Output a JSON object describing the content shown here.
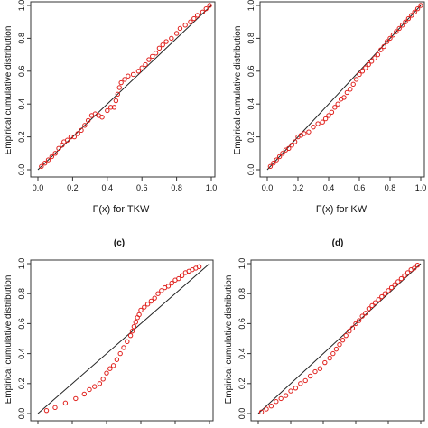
{
  "chart_data": [
    {
      "type": "scatter",
      "panel_label": "",
      "xlabel": "F(x) for TKW",
      "ylabel": "Empirical cumulative distribution",
      "xlim": [
        0,
        1
      ],
      "ylim": [
        0,
        1
      ],
      "x_ticks": [
        "0.0",
        "0.2",
        "0.4",
        "0.6",
        "0.8",
        "1.0"
      ],
      "y_ticks": [
        "0.0",
        "0.2",
        "0.4",
        "0.6",
        "0.8",
        "1.0"
      ],
      "reference_line": {
        "from": [
          0,
          0
        ],
        "to": [
          1,
          1
        ]
      },
      "points_x": [
        0.02,
        0.04,
        0.06,
        0.08,
        0.1,
        0.12,
        0.14,
        0.15,
        0.17,
        0.19,
        0.21,
        0.23,
        0.25,
        0.27,
        0.29,
        0.31,
        0.33,
        0.35,
        0.37,
        0.4,
        0.42,
        0.44,
        0.45,
        0.46,
        0.47,
        0.48,
        0.5,
        0.52,
        0.55,
        0.58,
        0.6,
        0.62,
        0.64,
        0.66,
        0.68,
        0.7,
        0.72,
        0.74,
        0.77,
        0.8,
        0.82,
        0.85,
        0.88,
        0.9,
        0.92,
        0.95,
        0.97,
        0.99
      ],
      "points_y": [
        0.02,
        0.04,
        0.06,
        0.08,
        0.1,
        0.13,
        0.15,
        0.17,
        0.18,
        0.2,
        0.2,
        0.22,
        0.24,
        0.27,
        0.3,
        0.33,
        0.34,
        0.33,
        0.32,
        0.36,
        0.38,
        0.38,
        0.42,
        0.46,
        0.5,
        0.53,
        0.55,
        0.57,
        0.58,
        0.6,
        0.62,
        0.64,
        0.67,
        0.69,
        0.71,
        0.74,
        0.76,
        0.78,
        0.8,
        0.83,
        0.86,
        0.88,
        0.9,
        0.92,
        0.94,
        0.96,
        0.98,
        1.0
      ]
    },
    {
      "type": "scatter",
      "panel_label": "",
      "xlabel": "F(x) for KW",
      "ylabel": "Empirical cumulative distribution",
      "xlim": [
        0,
        1
      ],
      "ylim": [
        0,
        1
      ],
      "x_ticks": [
        "0.0",
        "0.2",
        "0.4",
        "0.6",
        "0.8",
        "1.0"
      ],
      "y_ticks": [
        "0.0",
        "0.2",
        "0.4",
        "0.6",
        "0.8",
        "1.0"
      ],
      "reference_line": {
        "from": [
          0,
          0
        ],
        "to": [
          1,
          1
        ]
      },
      "points_x": [
        0.02,
        0.04,
        0.06,
        0.08,
        0.1,
        0.12,
        0.14,
        0.16,
        0.18,
        0.2,
        0.22,
        0.24,
        0.27,
        0.3,
        0.33,
        0.36,
        0.38,
        0.4,
        0.42,
        0.44,
        0.46,
        0.48,
        0.5,
        0.52,
        0.54,
        0.56,
        0.58,
        0.6,
        0.62,
        0.64,
        0.66,
        0.68,
        0.7,
        0.72,
        0.74,
        0.76,
        0.78,
        0.8,
        0.82,
        0.84,
        0.86,
        0.88,
        0.9,
        0.92,
        0.94,
        0.96,
        0.98,
        1.0
      ],
      "points_y": [
        0.02,
        0.04,
        0.06,
        0.08,
        0.1,
        0.12,
        0.13,
        0.15,
        0.17,
        0.2,
        0.21,
        0.22,
        0.23,
        0.26,
        0.28,
        0.29,
        0.31,
        0.33,
        0.35,
        0.38,
        0.4,
        0.43,
        0.44,
        0.47,
        0.49,
        0.52,
        0.55,
        0.58,
        0.6,
        0.62,
        0.64,
        0.66,
        0.68,
        0.7,
        0.73,
        0.75,
        0.78,
        0.8,
        0.82,
        0.84,
        0.86,
        0.88,
        0.9,
        0.92,
        0.94,
        0.96,
        0.98,
        1.0
      ]
    },
    {
      "type": "scatter",
      "panel_label": "(c)",
      "xlabel": "",
      "ylabel": "Empirical cumulative distribution",
      "xlim": [
        0,
        1
      ],
      "ylim": [
        0,
        1
      ],
      "x_ticks": [],
      "y_ticks": [
        "0.0",
        "0.2",
        "0.4",
        "0.6",
        "0.8",
        "1.0"
      ],
      "reference_line": {
        "from": [
          0,
          0
        ],
        "to": [
          1,
          1
        ]
      },
      "points_x": [
        0.05,
        0.1,
        0.16,
        0.22,
        0.27,
        0.3,
        0.33,
        0.36,
        0.38,
        0.4,
        0.42,
        0.44,
        0.46,
        0.48,
        0.5,
        0.52,
        0.54,
        0.55,
        0.56,
        0.57,
        0.58,
        0.59,
        0.6,
        0.62,
        0.64,
        0.66,
        0.68,
        0.7,
        0.72,
        0.74,
        0.76,
        0.78,
        0.8,
        0.82,
        0.84,
        0.86,
        0.88,
        0.9,
        0.92,
        0.94
      ],
      "points_y": [
        0.02,
        0.04,
        0.07,
        0.1,
        0.13,
        0.16,
        0.18,
        0.2,
        0.23,
        0.27,
        0.3,
        0.32,
        0.36,
        0.4,
        0.44,
        0.48,
        0.52,
        0.55,
        0.58,
        0.61,
        0.64,
        0.66,
        0.69,
        0.71,
        0.73,
        0.75,
        0.77,
        0.8,
        0.82,
        0.84,
        0.85,
        0.87,
        0.89,
        0.9,
        0.92,
        0.94,
        0.95,
        0.96,
        0.97,
        0.98
      ]
    },
    {
      "type": "scatter",
      "panel_label": "(d)",
      "xlabel": "",
      "ylabel": "Empirical cumulative distribution",
      "xlim": [
        0,
        1
      ],
      "ylim": [
        0,
        1
      ],
      "x_ticks": [],
      "y_ticks": [
        "0.0",
        "0.2",
        "0.4",
        "0.6",
        "0.8",
        "1.0"
      ],
      "reference_line": {
        "from": [
          0,
          0
        ],
        "to": [
          1,
          1
        ]
      },
      "points_x": [
        0.02,
        0.05,
        0.08,
        0.11,
        0.14,
        0.17,
        0.2,
        0.23,
        0.26,
        0.29,
        0.32,
        0.35,
        0.38,
        0.41,
        0.44,
        0.46,
        0.48,
        0.5,
        0.52,
        0.54,
        0.56,
        0.58,
        0.6,
        0.62,
        0.64,
        0.66,
        0.68,
        0.7,
        0.72,
        0.74,
        0.76,
        0.78,
        0.8,
        0.82,
        0.84,
        0.86,
        0.88,
        0.9,
        0.92,
        0.94,
        0.96,
        0.98
      ],
      "points_y": [
        0.01,
        0.03,
        0.05,
        0.08,
        0.1,
        0.12,
        0.15,
        0.17,
        0.2,
        0.22,
        0.25,
        0.28,
        0.3,
        0.34,
        0.37,
        0.4,
        0.43,
        0.46,
        0.49,
        0.52,
        0.55,
        0.57,
        0.6,
        0.62,
        0.65,
        0.67,
        0.7,
        0.72,
        0.74,
        0.76,
        0.78,
        0.8,
        0.82,
        0.84,
        0.86,
        0.88,
        0.9,
        0.92,
        0.94,
        0.96,
        0.97,
        0.99
      ]
    }
  ],
  "colors": {
    "points": "#e0201c",
    "line": "#222222",
    "axis": "#333333",
    "text": "#111111"
  }
}
